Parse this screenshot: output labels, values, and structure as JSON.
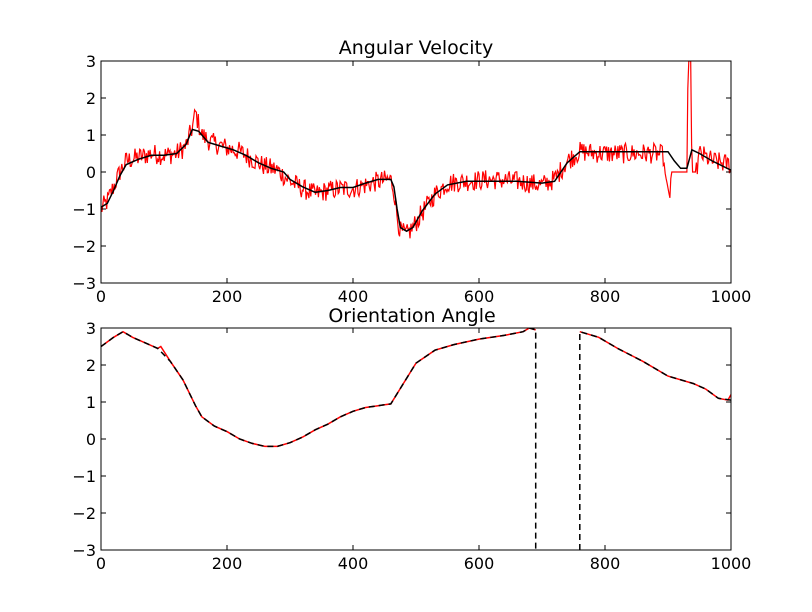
{
  "chart_data": [
    {
      "type": "line",
      "title": "Angular Velocity",
      "xlabel": "",
      "ylabel": "",
      "xlim": [
        0,
        1000
      ],
      "ylim": [
        -3,
        3
      ],
      "xticks": [
        0,
        200,
        400,
        600,
        800,
        1000
      ],
      "yticks": [
        -3,
        -2,
        -1,
        0,
        1,
        2,
        3
      ],
      "grid": false,
      "series": [
        {
          "color": "#ff0000",
          "style": "solid",
          "noise": true,
          "points": [
            [
              0,
              -1.0
            ],
            [
              10,
              -0.8
            ],
            [
              20,
              -0.4
            ],
            [
              30,
              0.0
            ],
            [
              40,
              0.3
            ],
            [
              60,
              0.4
            ],
            [
              80,
              0.5
            ],
            [
              100,
              0.45
            ],
            [
              120,
              0.5
            ],
            [
              135,
              0.7
            ],
            [
              145,
              1.2
            ],
            [
              150,
              1.6
            ],
            [
              160,
              1.0
            ],
            [
              175,
              0.8
            ],
            [
              200,
              0.65
            ],
            [
              220,
              0.55
            ],
            [
              240,
              0.35
            ],
            [
              260,
              0.15
            ],
            [
              280,
              0.05
            ],
            [
              300,
              -0.25
            ],
            [
              320,
              -0.45
            ],
            [
              340,
              -0.6
            ],
            [
              360,
              -0.5
            ],
            [
              380,
              -0.45
            ],
            [
              400,
              -0.45
            ],
            [
              420,
              -0.35
            ],
            [
              440,
              -0.25
            ],
            [
              460,
              -0.2
            ],
            [
              465,
              -0.5
            ],
            [
              470,
              -1.2
            ],
            [
              475,
              -1.6
            ],
            [
              485,
              -1.7
            ],
            [
              495,
              -1.5
            ],
            [
              510,
              -1.1
            ],
            [
              530,
              -0.6
            ],
            [
              550,
              -0.3
            ],
            [
              580,
              -0.25
            ],
            [
              620,
              -0.2
            ],
            [
              660,
              -0.25
            ],
            [
              700,
              -0.35
            ],
            [
              720,
              -0.2
            ],
            [
              740,
              0.3
            ],
            [
              760,
              0.55
            ],
            [
              800,
              0.5
            ],
            [
              840,
              0.5
            ],
            [
              880,
              0.5
            ],
            [
              893,
              0.45
            ],
            [
              895,
              0.0
            ],
            [
              903,
              -0.7
            ],
            [
              905,
              0.0
            ],
            [
              920,
              0.0
            ],
            [
              930,
              0.0
            ],
            [
              932,
              3.0
            ],
            [
              936,
              3.0
            ],
            [
              938,
              0.0
            ],
            [
              945,
              0.0
            ],
            [
              950,
              0.5
            ],
            [
              970,
              0.3
            ],
            [
              1000,
              0.2
            ]
          ]
        },
        {
          "color": "#000000",
          "style": "solid",
          "noise": false,
          "points": [
            [
              0,
              -0.95
            ],
            [
              10,
              -0.85
            ],
            [
              20,
              -0.5
            ],
            [
              30,
              -0.1
            ],
            [
              40,
              0.2
            ],
            [
              60,
              0.35
            ],
            [
              80,
              0.45
            ],
            [
              100,
              0.45
            ],
            [
              120,
              0.5
            ],
            [
              135,
              0.75
            ],
            [
              145,
              1.15
            ],
            [
              155,
              1.1
            ],
            [
              170,
              0.8
            ],
            [
              190,
              0.7
            ],
            [
              210,
              0.6
            ],
            [
              230,
              0.45
            ],
            [
              250,
              0.25
            ],
            [
              270,
              0.1
            ],
            [
              290,
              0.0
            ],
            [
              300,
              -0.2
            ],
            [
              320,
              -0.4
            ],
            [
              340,
              -0.55
            ],
            [
              360,
              -0.5
            ],
            [
              380,
              -0.42
            ],
            [
              400,
              -0.42
            ],
            [
              420,
              -0.3
            ],
            [
              440,
              -0.2
            ],
            [
              460,
              -0.2
            ],
            [
              465,
              -0.4
            ],
            [
              470,
              -1.0
            ],
            [
              475,
              -1.5
            ],
            [
              485,
              -1.6
            ],
            [
              495,
              -1.5
            ],
            [
              510,
              -1.05
            ],
            [
              530,
              -0.6
            ],
            [
              550,
              -0.35
            ],
            [
              580,
              -0.25
            ],
            [
              620,
              -0.25
            ],
            [
              660,
              -0.25
            ],
            [
              700,
              -0.3
            ],
            [
              720,
              -0.25
            ],
            [
              740,
              0.25
            ],
            [
              760,
              0.55
            ],
            [
              800,
              0.55
            ],
            [
              840,
              0.55
            ],
            [
              880,
              0.55
            ],
            [
              900,
              0.55
            ],
            [
              910,
              0.3
            ],
            [
              920,
              0.1
            ],
            [
              930,
              0.1
            ],
            [
              938,
              0.6
            ],
            [
              950,
              0.5
            ],
            [
              970,
              0.3
            ],
            [
              1000,
              0.05
            ]
          ]
        }
      ]
    },
    {
      "type": "line",
      "title": "Orientation Angle",
      "xlabel": "",
      "ylabel": "",
      "xlim": [
        0,
        1000
      ],
      "ylim": [
        -3,
        3
      ],
      "xticks": [
        0,
        200,
        400,
        600,
        800,
        1000
      ],
      "yticks": [
        -3,
        -2,
        -1,
        0,
        1,
        2,
        3
      ],
      "grid": false,
      "series": [
        {
          "color": "#ff0000",
          "style": "solid",
          "noise": false,
          "points": [
            [
              0,
              2.5
            ],
            [
              20,
              2.75
            ],
            [
              35,
              2.9
            ],
            [
              50,
              2.75
            ],
            [
              70,
              2.6
            ],
            [
              90,
              2.45
            ],
            [
              95,
              2.5
            ],
            [
              110,
              2.1
            ],
            [
              130,
              1.6
            ],
            [
              150,
              0.9
            ],
            [
              160,
              0.6
            ],
            [
              180,
              0.35
            ],
            [
              200,
              0.2
            ],
            [
              220,
              0.0
            ],
            [
              240,
              -0.12
            ],
            [
              260,
              -0.2
            ],
            [
              280,
              -0.2
            ],
            [
              300,
              -0.1
            ],
            [
              320,
              0.05
            ],
            [
              340,
              0.25
            ],
            [
              360,
              0.4
            ],
            [
              380,
              0.6
            ],
            [
              400,
              0.75
            ],
            [
              420,
              0.85
            ],
            [
              440,
              0.9
            ],
            [
              460,
              0.95
            ],
            [
              480,
              1.5
            ],
            [
              500,
              2.05
            ],
            [
              530,
              2.4
            ],
            [
              560,
              2.55
            ],
            [
              600,
              2.7
            ],
            [
              640,
              2.8
            ],
            [
              670,
              2.9
            ],
            [
              680,
              3.0
            ],
            [
              690,
              2.95
            ]
          ]
        },
        {
          "color": "#ff0000",
          "style": "solid",
          "noise": false,
          "points": [
            [
              760,
              2.9
            ],
            [
              790,
              2.75
            ],
            [
              820,
              2.45
            ],
            [
              860,
              2.1
            ],
            [
              900,
              1.7
            ],
            [
              940,
              1.5
            ],
            [
              960,
              1.35
            ],
            [
              980,
              1.1
            ],
            [
              995,
              1.05
            ],
            [
              1000,
              1.2
            ]
          ]
        },
        {
          "color": "#000000",
          "style": "dashed",
          "noise": false,
          "points": [
            [
              0,
              2.5
            ],
            [
              20,
              2.75
            ],
            [
              35,
              2.9
            ],
            [
              50,
              2.75
            ],
            [
              70,
              2.6
            ],
            [
              90,
              2.45
            ],
            [
              110,
              2.1
            ],
            [
              130,
              1.6
            ],
            [
              150,
              0.9
            ],
            [
              160,
              0.6
            ],
            [
              180,
              0.35
            ],
            [
              200,
              0.2
            ],
            [
              220,
              0.0
            ],
            [
              240,
              -0.12
            ],
            [
              260,
              -0.2
            ],
            [
              280,
              -0.2
            ],
            [
              300,
              -0.1
            ],
            [
              320,
              0.05
            ],
            [
              340,
              0.25
            ],
            [
              360,
              0.4
            ],
            [
              380,
              0.6
            ],
            [
              400,
              0.75
            ],
            [
              420,
              0.85
            ],
            [
              440,
              0.9
            ],
            [
              460,
              0.95
            ],
            [
              480,
              1.5
            ],
            [
              500,
              2.05
            ],
            [
              530,
              2.4
            ],
            [
              560,
              2.55
            ],
            [
              600,
              2.7
            ],
            [
              640,
              2.8
            ],
            [
              670,
              2.9
            ],
            [
              680,
              3.0
            ],
            [
              690,
              2.95
            ],
            [
              690,
              -3.0
            ]
          ]
        },
        {
          "color": "#000000",
          "style": "dashed",
          "noise": false,
          "points": [
            [
              760,
              -3.0
            ],
            [
              760,
              2.9
            ],
            [
              790,
              2.75
            ],
            [
              820,
              2.45
            ],
            [
              860,
              2.1
            ],
            [
              900,
              1.7
            ],
            [
              940,
              1.5
            ],
            [
              960,
              1.35
            ],
            [
              980,
              1.1
            ],
            [
              1000,
              1.05
            ]
          ]
        }
      ]
    }
  ]
}
